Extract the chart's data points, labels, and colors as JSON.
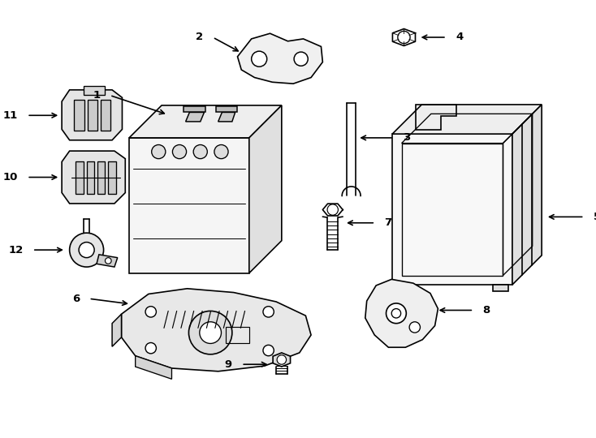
{
  "bg_color": "#ffffff",
  "line_color": "#000000",
  "line_width": 1.2,
  "figure_width": 7.34,
  "figure_height": 5.4,
  "xlim": [
    0,
    7.34
  ],
  "ylim": [
    0,
    5.4
  ]
}
